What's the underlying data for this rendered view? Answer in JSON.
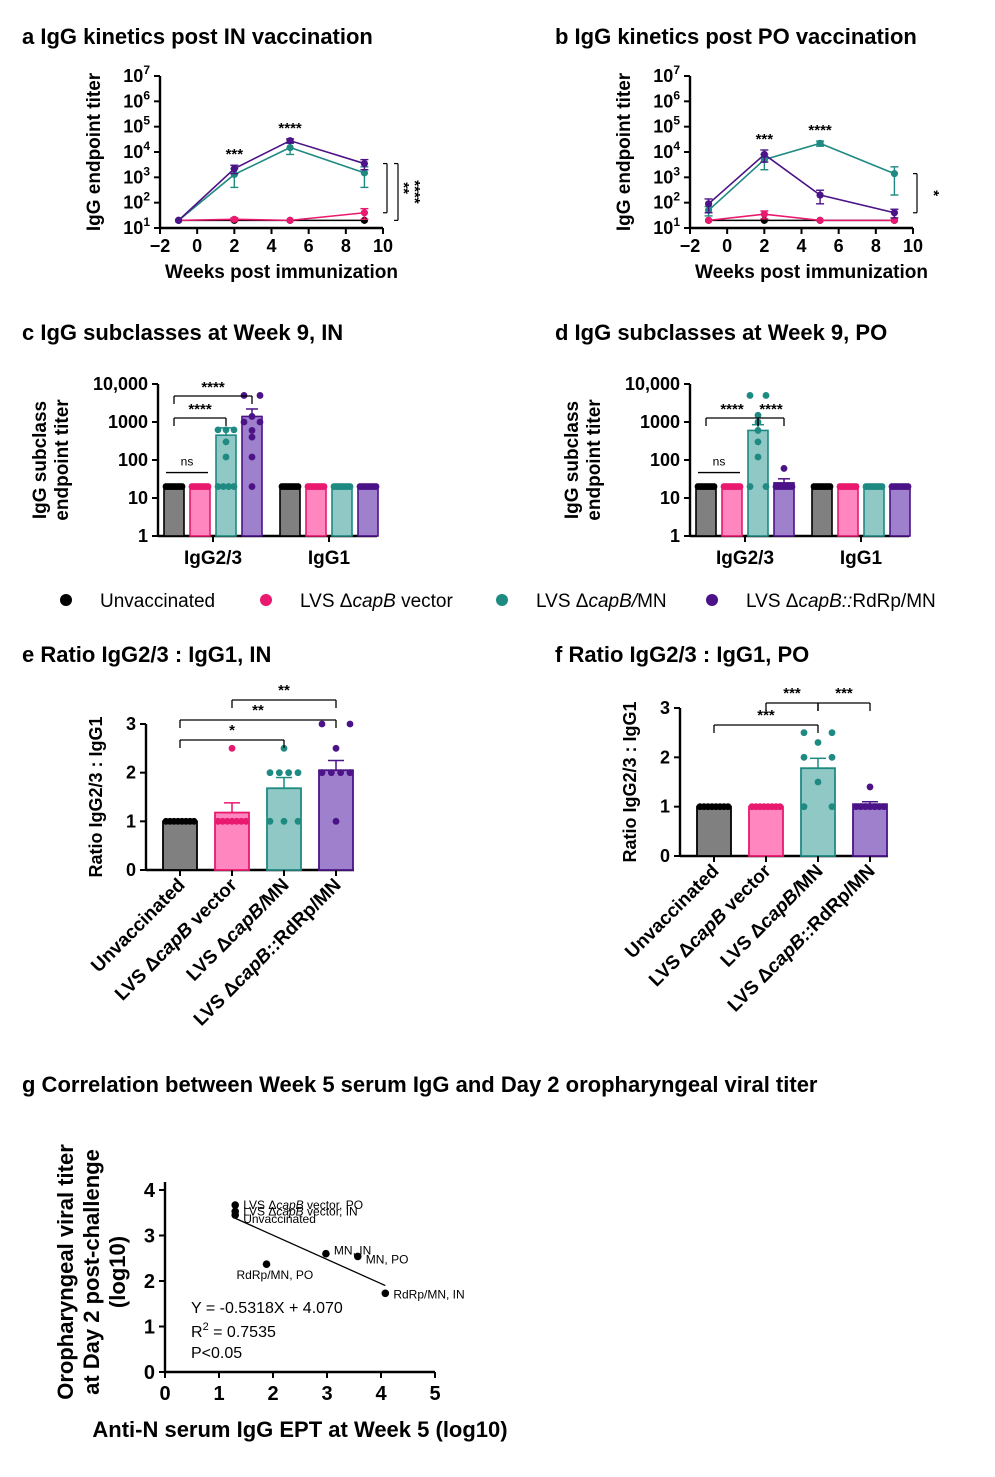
{
  "colors": {
    "unvaccinated": "#000000",
    "vector": "#e8196e",
    "mn": "#1e8a82",
    "rdrp": "#4b1387",
    "unvaccinated_fill": "#808080",
    "vector_fill": "#ff86bf",
    "mn_fill": "#8fc8c4",
    "rdrp_fill": "#9f80cc"
  },
  "groups": [
    {
      "id": "unvaccinated",
      "label": "Unvaccinated"
    },
    {
      "id": "vector",
      "label_prefix": "LVS Δ",
      "label_italic": "capB",
      "label_suffix": " vector"
    },
    {
      "id": "mn",
      "label_prefix": "LVS Δ",
      "label_italic": "capB/",
      "label_suffix": "MN"
    },
    {
      "id": "rdrp",
      "label_prefix": "LVS Δ",
      "label_italic": "capB::",
      "label_suffix": "RdRp/MN"
    }
  ],
  "legend": {
    "items": [
      {
        "group": "unvaccinated",
        "parts": [
          {
            "t": "Unvaccinated"
          }
        ]
      },
      {
        "group": "vector",
        "parts": [
          {
            "t": "LVS Δ"
          },
          {
            "t": "capB",
            "i": true
          },
          {
            "t": " vector"
          }
        ]
      },
      {
        "group": "mn",
        "parts": [
          {
            "t": "LVS Δ"
          },
          {
            "t": "capB/",
            "i": true
          },
          {
            "t": "MN"
          }
        ]
      },
      {
        "group": "rdrp",
        "parts": [
          {
            "t": "LVS Δ"
          },
          {
            "t": "capB::",
            "i": true
          },
          {
            "t": "RdRp/MN"
          }
        ]
      }
    ]
  },
  "chart_data": [
    {
      "panel": "a",
      "type": "line",
      "title": "a IgG kinetics post IN vaccination",
      "xlabel": "Weeks post immunization",
      "ylabel": "IgG endpoint titer",
      "xlim": [
        -2,
        10
      ],
      "xticks": [
        -2,
        0,
        2,
        4,
        6,
        8,
        10
      ],
      "yscale": "log",
      "ylim": [
        10,
        10000000
      ],
      "yticks": [
        {
          "m": "10",
          "e": "1"
        },
        {
          "m": "10",
          "e": "2"
        },
        {
          "m": "10",
          "e": "3"
        },
        {
          "m": "10",
          "e": "4"
        },
        {
          "m": "10",
          "e": "5"
        },
        {
          "m": "10",
          "e": "6"
        },
        {
          "m": "10",
          "e": "7"
        }
      ],
      "series": [
        {
          "group": "unvaccinated",
          "x": [
            -1,
            2,
            5,
            9
          ],
          "y": [
            20,
            20,
            20,
            20
          ],
          "err": [
            0,
            0,
            0,
            0
          ]
        },
        {
          "group": "vector",
          "x": [
            -1,
            2,
            5,
            9
          ],
          "y": [
            20,
            22,
            20,
            40
          ],
          "err": [
            0,
            3,
            0,
            18
          ]
        },
        {
          "group": "mn",
          "x": [
            -1,
            2,
            5,
            9
          ],
          "y": [
            20,
            1300,
            15000,
            1500
          ],
          "err": [
            0,
            900,
            7000,
            1100
          ]
        },
        {
          "group": "rdrp",
          "x": [
            -1,
            2,
            5,
            9
          ],
          "y": [
            20,
            2200,
            28000,
            3500
          ],
          "err": [
            0,
            800,
            5000,
            1500
          ]
        }
      ],
      "annotations": [
        {
          "x": 2,
          "text": "***"
        },
        {
          "x": 5,
          "text": "****"
        }
      ],
      "brackets": [
        {
          "text": "**",
          "from": 3500,
          "to": 40
        },
        {
          "text": "****",
          "from": 3500,
          "to": 20
        }
      ]
    },
    {
      "panel": "b",
      "type": "line",
      "title": "b IgG kinetics post PO vaccination",
      "xlabel": "Weeks post immunization",
      "ylabel": "IgG endpoint titer",
      "xlim": [
        -2,
        10
      ],
      "xticks": [
        -2,
        0,
        2,
        4,
        6,
        8,
        10
      ],
      "yscale": "log",
      "ylim": [
        10,
        10000000
      ],
      "yticks": [
        {
          "m": "10",
          "e": "1"
        },
        {
          "m": "10",
          "e": "2"
        },
        {
          "m": "10",
          "e": "3"
        },
        {
          "m": "10",
          "e": "4"
        },
        {
          "m": "10",
          "e": "5"
        },
        {
          "m": "10",
          "e": "6"
        },
        {
          "m": "10",
          "e": "7"
        }
      ],
      "series": [
        {
          "group": "unvaccinated",
          "x": [
            -1,
            2,
            5,
            9
          ],
          "y": [
            20,
            20,
            20,
            20
          ],
          "err": [
            0,
            0,
            0,
            0
          ]
        },
        {
          "group": "vector",
          "x": [
            -1,
            2,
            5,
            9
          ],
          "y": [
            20,
            35,
            20,
            20
          ],
          "err": [
            0,
            12,
            0,
            0
          ]
        },
        {
          "group": "mn",
          "x": [
            -1,
            2,
            5,
            9
          ],
          "y": [
            50,
            5000,
            22000,
            1400
          ],
          "err": [
            20,
            3000,
            5000,
            1200
          ]
        },
        {
          "group": "rdrp",
          "x": [
            -1,
            2,
            5,
            9
          ],
          "y": [
            90,
            8000,
            200,
            40
          ],
          "err": [
            50,
            4000,
            110,
            15
          ]
        }
      ],
      "annotations": [
        {
          "x": 2,
          "text": "***"
        },
        {
          "x": 5,
          "text": "****"
        }
      ],
      "brackets": [
        {
          "text": "*",
          "from": 1400,
          "to": 40
        }
      ]
    },
    {
      "panel": "c",
      "type": "bar",
      "title": "c IgG subclasses at Week 9, IN",
      "ylabel": [
        "IgG subclass",
        "endpoint titer"
      ],
      "yscale": "log",
      "ylim": [
        1,
        10000
      ],
      "yticks": [
        "1",
        "10",
        "100",
        "1000",
        "10,000"
      ],
      "categories": [
        "IgG2/3",
        "IgG1"
      ],
      "bars": [
        {
          "cat": 0,
          "group": "unvaccinated",
          "mean": 20,
          "err": 0,
          "points": [
            20,
            20,
            20,
            20,
            20,
            20,
            20,
            20
          ]
        },
        {
          "cat": 0,
          "group": "vector",
          "mean": 20,
          "err": 0,
          "points": [
            20,
            20,
            20,
            20,
            20,
            20,
            20,
            20
          ]
        },
        {
          "cat": 0,
          "group": "mn",
          "mean": 450,
          "err": 250,
          "points": [
            20,
            20,
            20,
            20,
            120,
            620,
            620,
            620,
            300
          ]
        },
        {
          "cat": 0,
          "group": "rdrp",
          "mean": 1400,
          "err": 800,
          "points": [
            20,
            120,
            400,
            600,
            1000,
            1000,
            1400,
            5000,
            5000
          ]
        },
        {
          "cat": 1,
          "group": "unvaccinated",
          "mean": 20,
          "err": 0,
          "points": [
            20,
            20,
            20,
            20,
            20,
            20,
            20,
            20
          ]
        },
        {
          "cat": 1,
          "group": "vector",
          "mean": 20,
          "err": 0,
          "points": [
            20,
            20,
            20,
            20,
            20,
            20,
            20,
            20
          ]
        },
        {
          "cat": 1,
          "group": "mn",
          "mean": 20,
          "err": 0,
          "points": [
            20,
            20,
            20,
            20,
            20,
            20,
            20,
            20
          ]
        },
        {
          "cat": 1,
          "group": "rdrp",
          "mean": 20,
          "err": 0,
          "points": [
            20,
            20,
            20,
            20,
            20,
            20,
            20,
            20
          ]
        }
      ],
      "sig": [
        {
          "from": 0,
          "to": 1,
          "text": "ns",
          "level": 0
        },
        {
          "from": 0,
          "to": 2,
          "text": "****",
          "level": 1
        },
        {
          "from": 0,
          "to": 3,
          "text": "****",
          "level": 2
        }
      ]
    },
    {
      "panel": "d",
      "type": "bar",
      "title": "d IgG subclasses at Week 9, PO",
      "ylabel": [
        "IgG subclass",
        "endpoint titer"
      ],
      "yscale": "log",
      "ylim": [
        1,
        10000
      ],
      "yticks": [
        "1",
        "10",
        "100",
        "1000",
        "10,000"
      ],
      "categories": [
        "IgG2/3",
        "IgG1"
      ],
      "bars": [
        {
          "cat": 0,
          "group": "unvaccinated",
          "mean": 20,
          "err": 0,
          "points": [
            20,
            20,
            20,
            20,
            20,
            20,
            20,
            20
          ]
        },
        {
          "cat": 0,
          "group": "vector",
          "mean": 20,
          "err": 0,
          "points": [
            20,
            20,
            20,
            20,
            20,
            20,
            20,
            20
          ]
        },
        {
          "cat": 0,
          "group": "mn",
          "mean": 600,
          "err": 250,
          "points": [
            20,
            20,
            120,
            300,
            600,
            1000,
            1500,
            5000,
            5000
          ]
        },
        {
          "cat": 0,
          "group": "rdrp",
          "mean": 25,
          "err": 7,
          "points": [
            20,
            20,
            20,
            20,
            20,
            20,
            20,
            60
          ]
        },
        {
          "cat": 1,
          "group": "unvaccinated",
          "mean": 20,
          "err": 0,
          "points": [
            20,
            20,
            20,
            20,
            20,
            20,
            20,
            20
          ]
        },
        {
          "cat": 1,
          "group": "vector",
          "mean": 20,
          "err": 0,
          "points": [
            20,
            20,
            20,
            20,
            20,
            20,
            20,
            20
          ]
        },
        {
          "cat": 1,
          "group": "mn",
          "mean": 20,
          "err": 0,
          "points": [
            20,
            20,
            20,
            20,
            20,
            20,
            20,
            20
          ]
        },
        {
          "cat": 1,
          "group": "rdrp",
          "mean": 20,
          "err": 0,
          "points": [
            20,
            20,
            20,
            20,
            20,
            20,
            20,
            20
          ]
        }
      ],
      "sig": [
        {
          "from": 0,
          "to": 1,
          "text": "ns",
          "level": 0
        },
        {
          "from": 0,
          "to": 2,
          "text": "****",
          "level": 1
        },
        {
          "from": 2,
          "to": 3,
          "text": "****",
          "level": 1
        }
      ]
    },
    {
      "panel": "e",
      "type": "bar",
      "title": "e Ratio IgG2/3 : IgG1, IN",
      "ylabel": "Ratio IgG2/3 : IgG1",
      "ylim": [
        0,
        3
      ],
      "yticks": [
        "0",
        "1",
        "2",
        "3"
      ],
      "bars": [
        {
          "group": "unvaccinated",
          "mean": 1.0,
          "err": 0,
          "points": [
            1,
            1,
            1,
            1,
            1,
            1,
            1,
            1
          ]
        },
        {
          "group": "vector",
          "mean": 1.18,
          "err": 0.2,
          "points": [
            1,
            1,
            1,
            1,
            1,
            1,
            1,
            2.5
          ]
        },
        {
          "group": "mn",
          "mean": 1.68,
          "err": 0.22,
          "points": [
            1,
            1,
            1,
            2,
            2,
            2,
            2.5,
            2
          ]
        },
        {
          "group": "rdrp",
          "mean": 2.05,
          "err": 0.2,
          "points": [
            1,
            2,
            2,
            2,
            2,
            2.5,
            3,
            3
          ]
        }
      ],
      "sig": [
        {
          "from": 0,
          "to": 2,
          "text": "*",
          "level": 0
        },
        {
          "from": 0,
          "to": 3,
          "text": "**",
          "level": 1
        },
        {
          "from": 1,
          "to": 3,
          "text": "**",
          "level": 2
        }
      ]
    },
    {
      "panel": "f",
      "type": "bar",
      "title": "f  Ratio IgG2/3 : IgG1, PO",
      "ylabel": "Ratio IgG2/3 : IgG1",
      "ylim": [
        0,
        3
      ],
      "yticks": [
        "0",
        "1",
        "2",
        "3"
      ],
      "bars": [
        {
          "group": "unvaccinated",
          "mean": 1.0,
          "err": 0,
          "points": [
            1,
            1,
            1,
            1,
            1,
            1,
            1,
            1
          ]
        },
        {
          "group": "vector",
          "mean": 1.0,
          "err": 0,
          "points": [
            1,
            1,
            1,
            1,
            1,
            1,
            1,
            1
          ]
        },
        {
          "group": "mn",
          "mean": 1.78,
          "err": 0.2,
          "points": [
            1,
            1,
            1.5,
            2,
            2,
            2.3,
            2.5,
            2.5
          ]
        },
        {
          "group": "rdrp",
          "mean": 1.05,
          "err": 0.05,
          "points": [
            1,
            1,
            1,
            1,
            1,
            1,
            1,
            1.4
          ]
        }
      ],
      "sig": [
        {
          "from": 0,
          "to": 2,
          "text": "***",
          "level": 0
        },
        {
          "from": 1,
          "to": 2,
          "text": "***",
          "level": 1
        },
        {
          "from": 2,
          "to": 3,
          "text": "***",
          "level": 1
        }
      ]
    },
    {
      "panel": "g",
      "type": "scatter",
      "title": "g Correlation between Week 5 serum IgG and Day 2 oropharyngeal viral titer",
      "xlabel": "Anti-N serum IgG EPT at Week 5 (log10)",
      "ylabel": [
        "Oropharyngeal viral titer",
        "at Day 2 post-challenge",
        "(log10)"
      ],
      "xlim": [
        0,
        5
      ],
      "ylim": [
        0,
        4
      ],
      "xticks": [
        "0",
        "1",
        "2",
        "3",
        "4",
        "5"
      ],
      "yticks": [
        "0",
        "1",
        "2",
        "3",
        "4"
      ],
      "points": [
        {
          "x": 1.3,
          "y": 3.67,
          "label_parts": [
            {
              "t": "LVS Δ"
            },
            {
              "t": "capB",
              "i": true
            },
            {
              "t": " vector, PO"
            }
          ]
        },
        {
          "x": 1.3,
          "y": 3.53,
          "label_parts": [
            {
              "t": "LVS Δ"
            },
            {
              "t": "capB",
              "i": true
            },
            {
              "t": " vector, IN"
            }
          ]
        },
        {
          "x": 1.3,
          "y": 3.45,
          "label_parts": [
            {
              "t": "Unvaccinated"
            }
          ]
        },
        {
          "x": 2.98,
          "y": 2.6,
          "label_parts": [
            {
              "t": "MN, IN"
            }
          ]
        },
        {
          "x": 3.57,
          "y": 2.54,
          "label_parts": [
            {
              "t": "MN, PO"
            }
          ]
        },
        {
          "x": 1.88,
          "y": 2.37,
          "label_parts": [
            {
              "t": "RdRp/MN, PO"
            }
          ]
        },
        {
          "x": 4.08,
          "y": 1.73,
          "label_parts": [
            {
              "t": "RdRp/MN, IN"
            }
          ]
        }
      ],
      "fit": {
        "slope": -0.5318,
        "intercept": 4.07,
        "x_range": [
          1.3,
          4.08
        ]
      },
      "stats": {
        "equation": "Y = -0.5318X + 4.070",
        "r2_label": "R",
        "r2_sup": "2",
        "r2_value": " = 0.7535",
        "p": "P<0.05"
      }
    }
  ]
}
